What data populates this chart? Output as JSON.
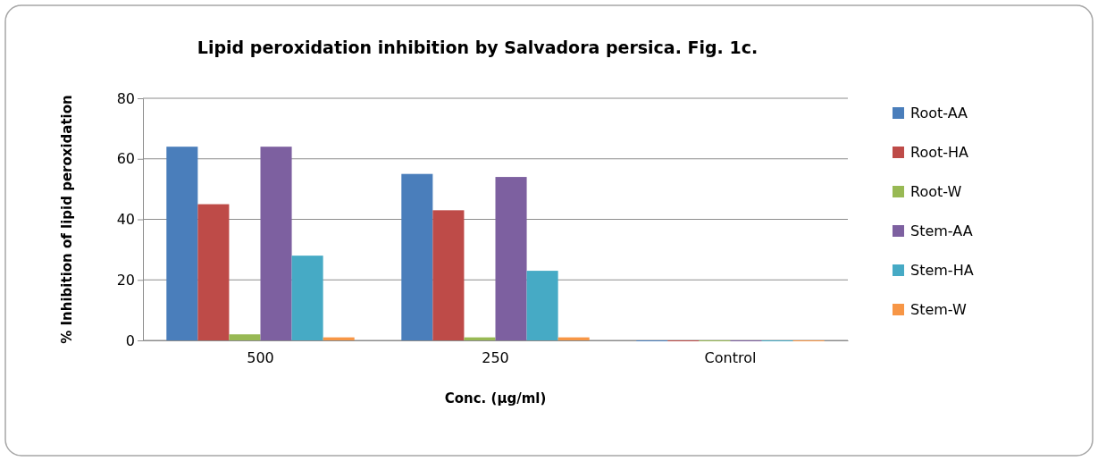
{
  "chart_data": {
    "type": "bar",
    "title": "Lipid peroxidation inhibition by Salvadora persica. Fig. 1c.",
    "xlabel": "Conc. (µg/ml)",
    "ylabel": "% Inhibition of lipid peroxidation",
    "categories": [
      "500",
      "250",
      "Control"
    ],
    "series": [
      {
        "name": "Root-AA",
        "color": "#4a7ebb",
        "values": [
          64,
          55,
          0
        ]
      },
      {
        "name": "Root-HA",
        "color": "#be4b48",
        "values": [
          45,
          43,
          0
        ]
      },
      {
        "name": "Root-W",
        "color": "#98b954",
        "values": [
          2,
          1,
          0
        ]
      },
      {
        "name": "Stem-AA",
        "color": "#7d60a0",
        "values": [
          64,
          54,
          0
        ]
      },
      {
        "name": "Stem-HA",
        "color": "#46aac5",
        "values": [
          28,
          23,
          0
        ]
      },
      {
        "name": "Stem-W",
        "color": "#f79646",
        "values": [
          1,
          1,
          0
        ]
      }
    ],
    "ylim": [
      0,
      80
    ],
    "yticks": [
      0,
      20,
      40,
      60,
      80
    ],
    "grid": "y",
    "legend": "right"
  }
}
